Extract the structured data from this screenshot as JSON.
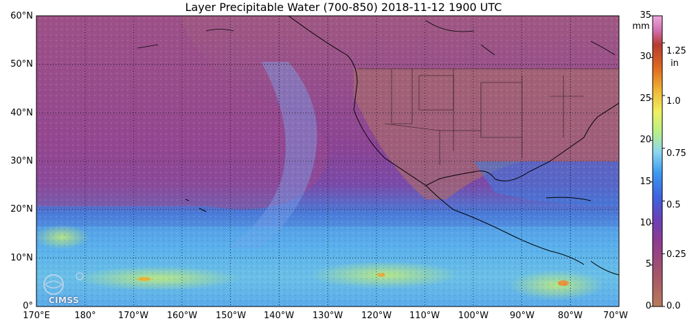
{
  "title": "Layer Precipitable Water (700-850)  2018-11-12 1900 UTC",
  "map": {
    "lat_labels": [
      "60°N",
      "50°N",
      "40°N",
      "30°N",
      "20°N",
      "10°N",
      "0°"
    ],
    "lon_labels": [
      "170°E",
      "180°",
      "170°W",
      "160°W",
      "150°W",
      "140°W",
      "130°W",
      "120°W",
      "110°W",
      "100°W",
      "90°W",
      "80°W",
      "70°W"
    ],
    "lat_range": [
      0,
      60
    ],
    "lon_range": [
      170,
      290
    ],
    "gridlines": "dotted"
  },
  "colorbar": {
    "unit_mm": "mm",
    "unit_in": "in",
    "mm_ticks": [
      "35",
      "30",
      "25",
      "20",
      "15",
      "10",
      "5",
      "0"
    ],
    "in_ticks": [
      "1.25",
      "1.0",
      "0.75",
      "0.5",
      "0.25",
      "0.0"
    ],
    "range_mm": [
      0,
      35
    ]
  },
  "logo": {
    "text": "CIMSS"
  }
}
